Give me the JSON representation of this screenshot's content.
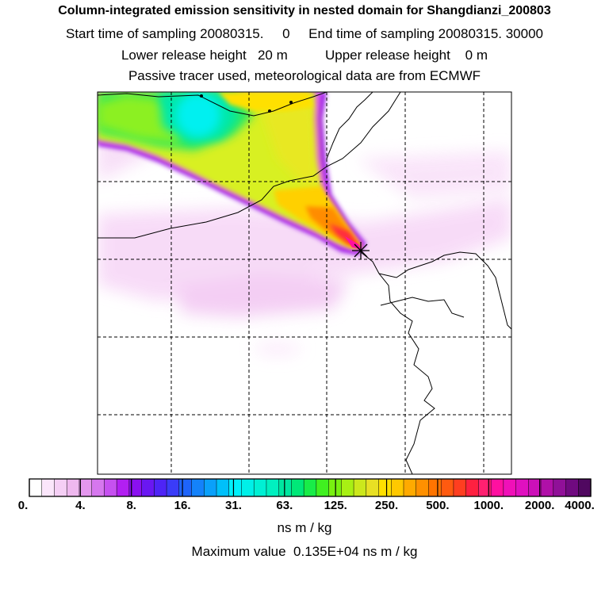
{
  "title": "Column-integrated emission sensitivity in nested domain for Shangdianzi_200803",
  "subtitle_sampling": "Start time of sampling 20080315.     0     End time of sampling 20080315. 30000",
  "subtitle_release": "Lower release height   20 m          Upper release height    0 m",
  "subtitle_tracer": "Passive tracer used, meteorological data are from ECMWF",
  "colorbar": {
    "tick_labels": [
      "0.",
      "4.",
      "8.",
      "16.",
      "31.",
      "63.",
      "125.",
      "250.",
      "500.",
      "1000.",
      "2000.",
      "4000."
    ],
    "colors": [
      "#ffffff",
      "#fbe6fb",
      "#f5cff5",
      "#efb8ef",
      "#e497ee",
      "#d677ee",
      "#c650f0",
      "#b21ff2",
      "#8a10f0",
      "#6a17f2",
      "#4e24f6",
      "#3a3cf8",
      "#1e64fa",
      "#1482fa",
      "#0aa0fa",
      "#00c0fa",
      "#00f0fa",
      "#00f0e8",
      "#00f0d4",
      "#00f0c0",
      "#00e6a0",
      "#00e878",
      "#18ec48",
      "#40f020",
      "#78f010",
      "#a8f014",
      "#cce81c",
      "#e8e024",
      "#ffe000",
      "#ffc800",
      "#ffaa00",
      "#ff9000",
      "#ff7400",
      "#ff5a10",
      "#ff3e20",
      "#ff2040",
      "#ff2070",
      "#ff10a0",
      "#f010b8",
      "#e010c0",
      "#cc10b8",
      "#b010a8",
      "#901098",
      "#700a80",
      "#500860"
    ],
    "units": "ns m / kg"
  },
  "maximum_value_text": "Maximum value  0.135E+04 ns m / kg",
  "release_site_marker": "asterisk-icon"
}
